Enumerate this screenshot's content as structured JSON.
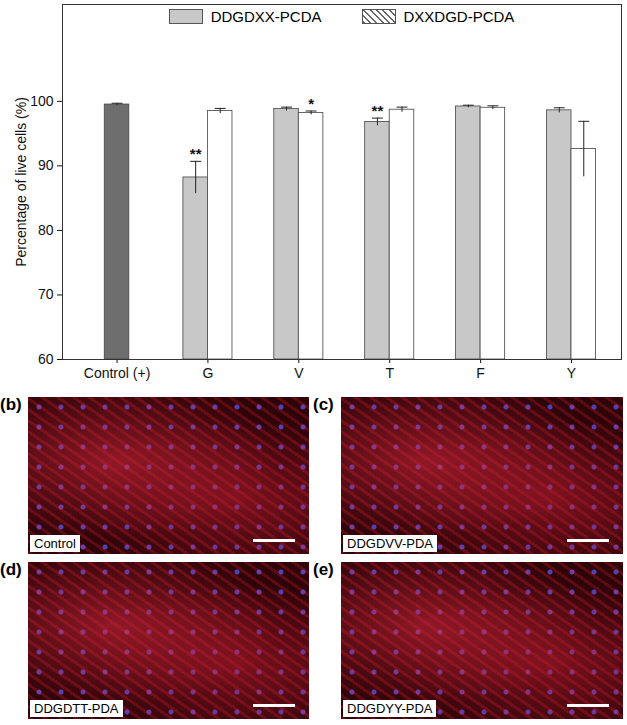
{
  "chart_data": {
    "type": "bar",
    "ylabel": "Percentage of live cells (%)",
    "categories": [
      "Control (+)",
      "G",
      "V",
      "T",
      "F",
      "Y"
    ],
    "ylim": [
      60,
      115
    ],
    "yticks": [
      60,
      70,
      80,
      90,
      100
    ],
    "legend": "top",
    "control": {
      "value": 99.5,
      "error": 0.2,
      "color": "#6e6e6e"
    },
    "series": [
      {
        "name": "DDGDXX-PCDA",
        "color": "#c8c8c8",
        "values": [
          null,
          88.2,
          98.8,
          96.8,
          99.2,
          98.6
        ],
        "errors": [
          null,
          2.5,
          0.3,
          0.6,
          0.2,
          0.4
        ],
        "significance": [
          null,
          "**",
          null,
          "**",
          null,
          null
        ]
      },
      {
        "name": "DXXDGD-PCDA",
        "color": "#ffffff",
        "line_style": "hatched",
        "values": [
          null,
          98.5,
          98.2,
          98.7,
          99.0,
          92.6
        ],
        "errors": [
          null,
          0.4,
          0.3,
          0.4,
          0.3,
          4.3
        ],
        "significance": [
          null,
          null,
          "*",
          null,
          null,
          null
        ]
      }
    ]
  },
  "image_panels": [
    {
      "tag": "(b)",
      "label": "Control"
    },
    {
      "tag": "(c)",
      "label": "DDGDVV-PDA"
    },
    {
      "tag": "(d)",
      "label": "DDGDTT-PDA"
    },
    {
      "tag": "(e)",
      "label": "DDGDYY-PDA"
    }
  ]
}
